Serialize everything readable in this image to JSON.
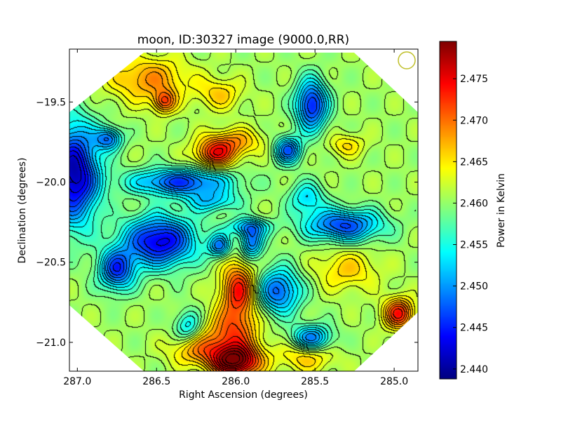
{
  "chart_data": {
    "type": "heatmap",
    "title": "moon, ID:30327 image (9000.0,RR)",
    "xlabel": "Right Ascension (degrees)",
    "ylabel": "Declination (degrees)",
    "xlim": [
      287.05,
      284.85
    ],
    "ylim": [
      -21.18,
      -19.17
    ],
    "x_inverted": true,
    "x_ticks": [
      287.0,
      286.5,
      286.0,
      285.5,
      285.0
    ],
    "x_tick_labels": [
      "287.0",
      "286.5",
      "286.0",
      "285.5",
      "285.0"
    ],
    "y_ticks": [
      -19.5,
      -20.0,
      -20.5,
      -21.0
    ],
    "y_tick_labels": [
      "−19.5",
      "−20.0",
      "−20.5",
      "−21.0"
    ],
    "colorbar": {
      "label": "Power in Kelvin",
      "range": [
        2.4388,
        2.4795
      ],
      "ticks": [
        2.44,
        2.445,
        2.45,
        2.455,
        2.46,
        2.465,
        2.47,
        2.475
      ],
      "tick_labels": [
        "2.440",
        "2.445",
        "2.450",
        "2.455",
        "2.460",
        "2.465",
        "2.470",
        "2.475"
      ],
      "colormap": "jet"
    },
    "contours": true,
    "masked_region": "octagon",
    "beam_marker": {
      "color": "#bfbf2a",
      "position": "top-right"
    },
    "grid": false,
    "background_value": 2.4605,
    "features": [
      {
        "name": "maximum",
        "ra": 286.0,
        "dec": -21.12,
        "value": 2.4795,
        "width": 0.11,
        "height": 0.07
      },
      {
        "name": "hot-ridge-mid",
        "ra": 285.98,
        "dec": -20.68,
        "value": 2.474,
        "width": 0.08,
        "height": 0.13
      },
      {
        "name": "hot-ridge-lower",
        "ra": 286.03,
        "dec": -20.95,
        "value": 2.47,
        "width": 0.12,
        "height": 0.1
      },
      {
        "name": "hot-ridge-low",
        "ra": 286.25,
        "dec": -21.05,
        "value": 2.4675,
        "width": 0.12,
        "height": 0.07
      },
      {
        "name": "hot-lower-right",
        "ra": 285.55,
        "dec": -21.08,
        "value": 2.4675,
        "width": 0.12,
        "height": 0.07
      },
      {
        "name": "hot-far-right",
        "ra": 284.97,
        "dec": -20.82,
        "value": 2.4735,
        "width": 0.07,
        "height": 0.07
      },
      {
        "name": "hot-bridge",
        "ra": 286.13,
        "dec": -19.83,
        "value": 2.472,
        "width": 0.09,
        "height": 0.06
      },
      {
        "name": "warm-top",
        "ra": 286.55,
        "dec": -19.36,
        "value": 2.4685,
        "width": 0.18,
        "height": 0.1
      },
      {
        "name": "warm-dot",
        "ra": 286.45,
        "dec": -19.5,
        "value": 2.47,
        "width": 0.05,
        "height": 0.05
      },
      {
        "name": "warm-blob-1",
        "ra": 286.02,
        "dec": -19.75,
        "value": 2.468,
        "width": 0.13,
        "height": 0.06
      },
      {
        "name": "warm-blob-2",
        "ra": 286.1,
        "dec": -19.45,
        "value": 2.466,
        "width": 0.1,
        "height": 0.07
      },
      {
        "name": "warm-right-mid",
        "ra": 285.3,
        "dec": -20.55,
        "value": 2.466,
        "width": 0.14,
        "height": 0.09
      },
      {
        "name": "warm-right-top",
        "ra": 285.3,
        "dec": -19.77,
        "value": 2.4655,
        "width": 0.08,
        "height": 0.05
      },
      {
        "name": "cold-left-edge",
        "ra": 287.02,
        "dec": -19.95,
        "value": 2.4405,
        "width": 0.11,
        "height": 0.22
      },
      {
        "name": "cold-center-left",
        "ra": 286.48,
        "dec": -20.37,
        "value": 2.4425,
        "width": 0.16,
        "height": 0.11
      },
      {
        "name": "cold-left",
        "ra": 286.75,
        "dec": -20.55,
        "value": 2.4465,
        "width": 0.08,
        "height": 0.09
      },
      {
        "name": "cold-top-right",
        "ra": 285.52,
        "dec": -19.52,
        "value": 2.4445,
        "width": 0.07,
        "height": 0.11
      },
      {
        "name": "cold-right",
        "ra": 285.32,
        "dec": -20.27,
        "value": 2.4465,
        "width": 0.17,
        "height": 0.07
      },
      {
        "name": "cold-upper-mid",
        "ra": 285.67,
        "dec": -19.8,
        "value": 2.4475,
        "width": 0.06,
        "height": 0.06
      },
      {
        "name": "cold-stream",
        "ra": 286.35,
        "dec": -20.0,
        "value": 2.4465,
        "width": 0.22,
        "height": 0.06
      },
      {
        "name": "cold-lower-1",
        "ra": 285.73,
        "dec": -20.68,
        "value": 2.4475,
        "width": 0.1,
        "height": 0.1
      },
      {
        "name": "cold-lower-2",
        "ra": 285.52,
        "dec": -20.98,
        "value": 2.4475,
        "width": 0.09,
        "height": 0.06
      },
      {
        "name": "cold-mid-1",
        "ra": 285.9,
        "dec": -20.38,
        "value": 2.4485,
        "width": 0.05,
        "height": 0.07
      },
      {
        "name": "cold-mid-2",
        "ra": 286.1,
        "dec": -20.4,
        "value": 2.4495,
        "width": 0.05,
        "height": 0.05
      },
      {
        "name": "cold-upper-left",
        "ra": 286.8,
        "dec": -19.73,
        "value": 2.4495,
        "width": 0.06,
        "height": 0.05
      },
      {
        "name": "cold-tendril",
        "ra": 285.92,
        "dec": -20.28,
        "value": 2.452,
        "width": 0.1,
        "height": 0.04
      },
      {
        "name": "cold-tendril-2",
        "ra": 286.15,
        "dec": -20.12,
        "value": 2.453,
        "width": 0.12,
        "height": 0.05
      },
      {
        "name": "cold-bottom-left",
        "ra": 286.3,
        "dec": -20.9,
        "value": 2.453,
        "width": 0.06,
        "height": 0.07
      },
      {
        "name": "cool-upper-right",
        "ra": 285.55,
        "dec": -20.1,
        "value": 2.453,
        "width": 0.08,
        "height": 0.07
      }
    ]
  }
}
